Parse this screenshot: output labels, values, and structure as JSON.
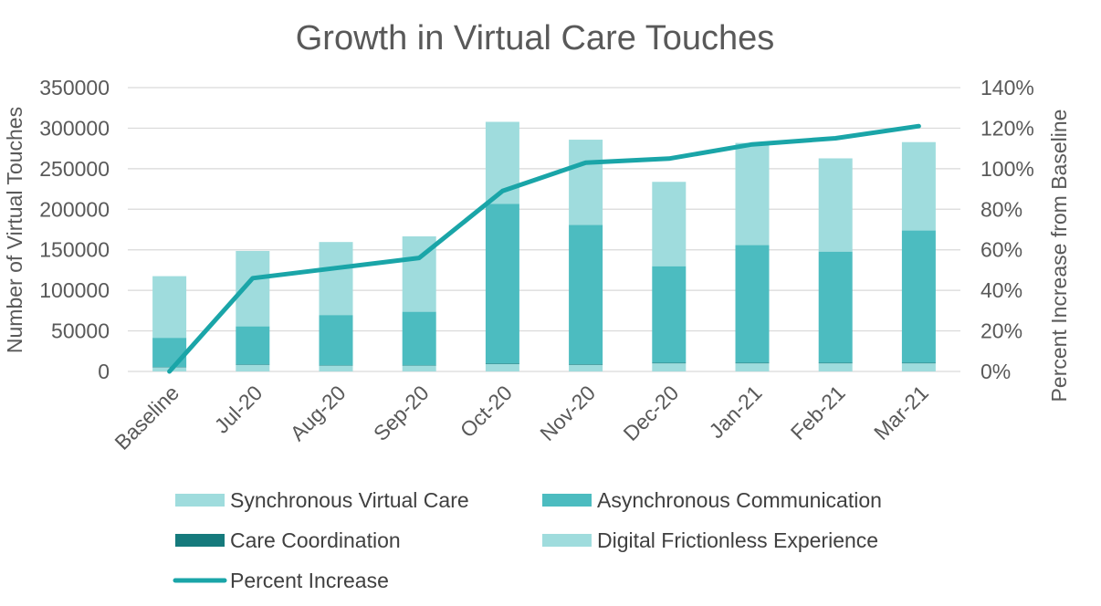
{
  "chart_data": {
    "type": "bar",
    "stacked": true,
    "title": "Growth in Virtual Care Touches",
    "ylabel": "Number of Virtual Touches",
    "y2label": "Percent Increase from Baseline",
    "xlabel": "",
    "ylim": [
      0,
      350000
    ],
    "y_ticks": [
      "0",
      "50000",
      "100000",
      "150000",
      "200000",
      "250000",
      "300000",
      "350000"
    ],
    "y2lim": [
      0,
      140
    ],
    "y2_ticks": [
      "0%",
      "20%",
      "40%",
      "60%",
      "80%",
      "100%",
      "120%",
      "140%"
    ],
    "grid": true,
    "legend_position": "bottom",
    "categories": [
      "Baseline",
      "Jul-20",
      "Aug-20",
      "Sep-20",
      "Oct-20",
      "Nov-20",
      "Dec-20",
      "Jan-21",
      "Feb-21",
      "Mar-21"
    ],
    "series": [
      {
        "name": "Digital Frictionless Experience",
        "kind": "bar",
        "color": "#9fdcdd",
        "values": [
          5000,
          8000,
          7000,
          7000,
          9000,
          8000,
          10000,
          10000,
          10000,
          10000
        ]
      },
      {
        "name": "Care Coordination",
        "kind": "bar",
        "color": "#157a7c",
        "values": [
          500,
          600,
          600,
          600,
          800,
          800,
          800,
          800,
          800,
          800
        ]
      },
      {
        "name": "Asynchronous Communication",
        "kind": "bar",
        "color": "#4cbcc0",
        "values": [
          36000,
          47000,
          62000,
          66000,
          197000,
          172000,
          119000,
          145000,
          137000,
          163000
        ]
      },
      {
        "name": "Synchronous Virtual Care",
        "kind": "bar",
        "color": "#9fdcdd",
        "values": [
          76000,
          93000,
          90000,
          93000,
          101000,
          105000,
          104000,
          126000,
          115000,
          109000
        ]
      },
      {
        "name": "Percent Increase",
        "kind": "line",
        "axis": "right",
        "color": "#1aa5a8",
        "values": [
          0,
          46,
          51,
          56,
          89,
          103,
          105,
          112,
          115,
          121
        ]
      }
    ],
    "legend": [
      "Synchronous Virtual Care",
      "Asynchronous Communication",
      "Care Coordination",
      "Digital Frictionless Experience",
      "Percent Increase"
    ]
  }
}
